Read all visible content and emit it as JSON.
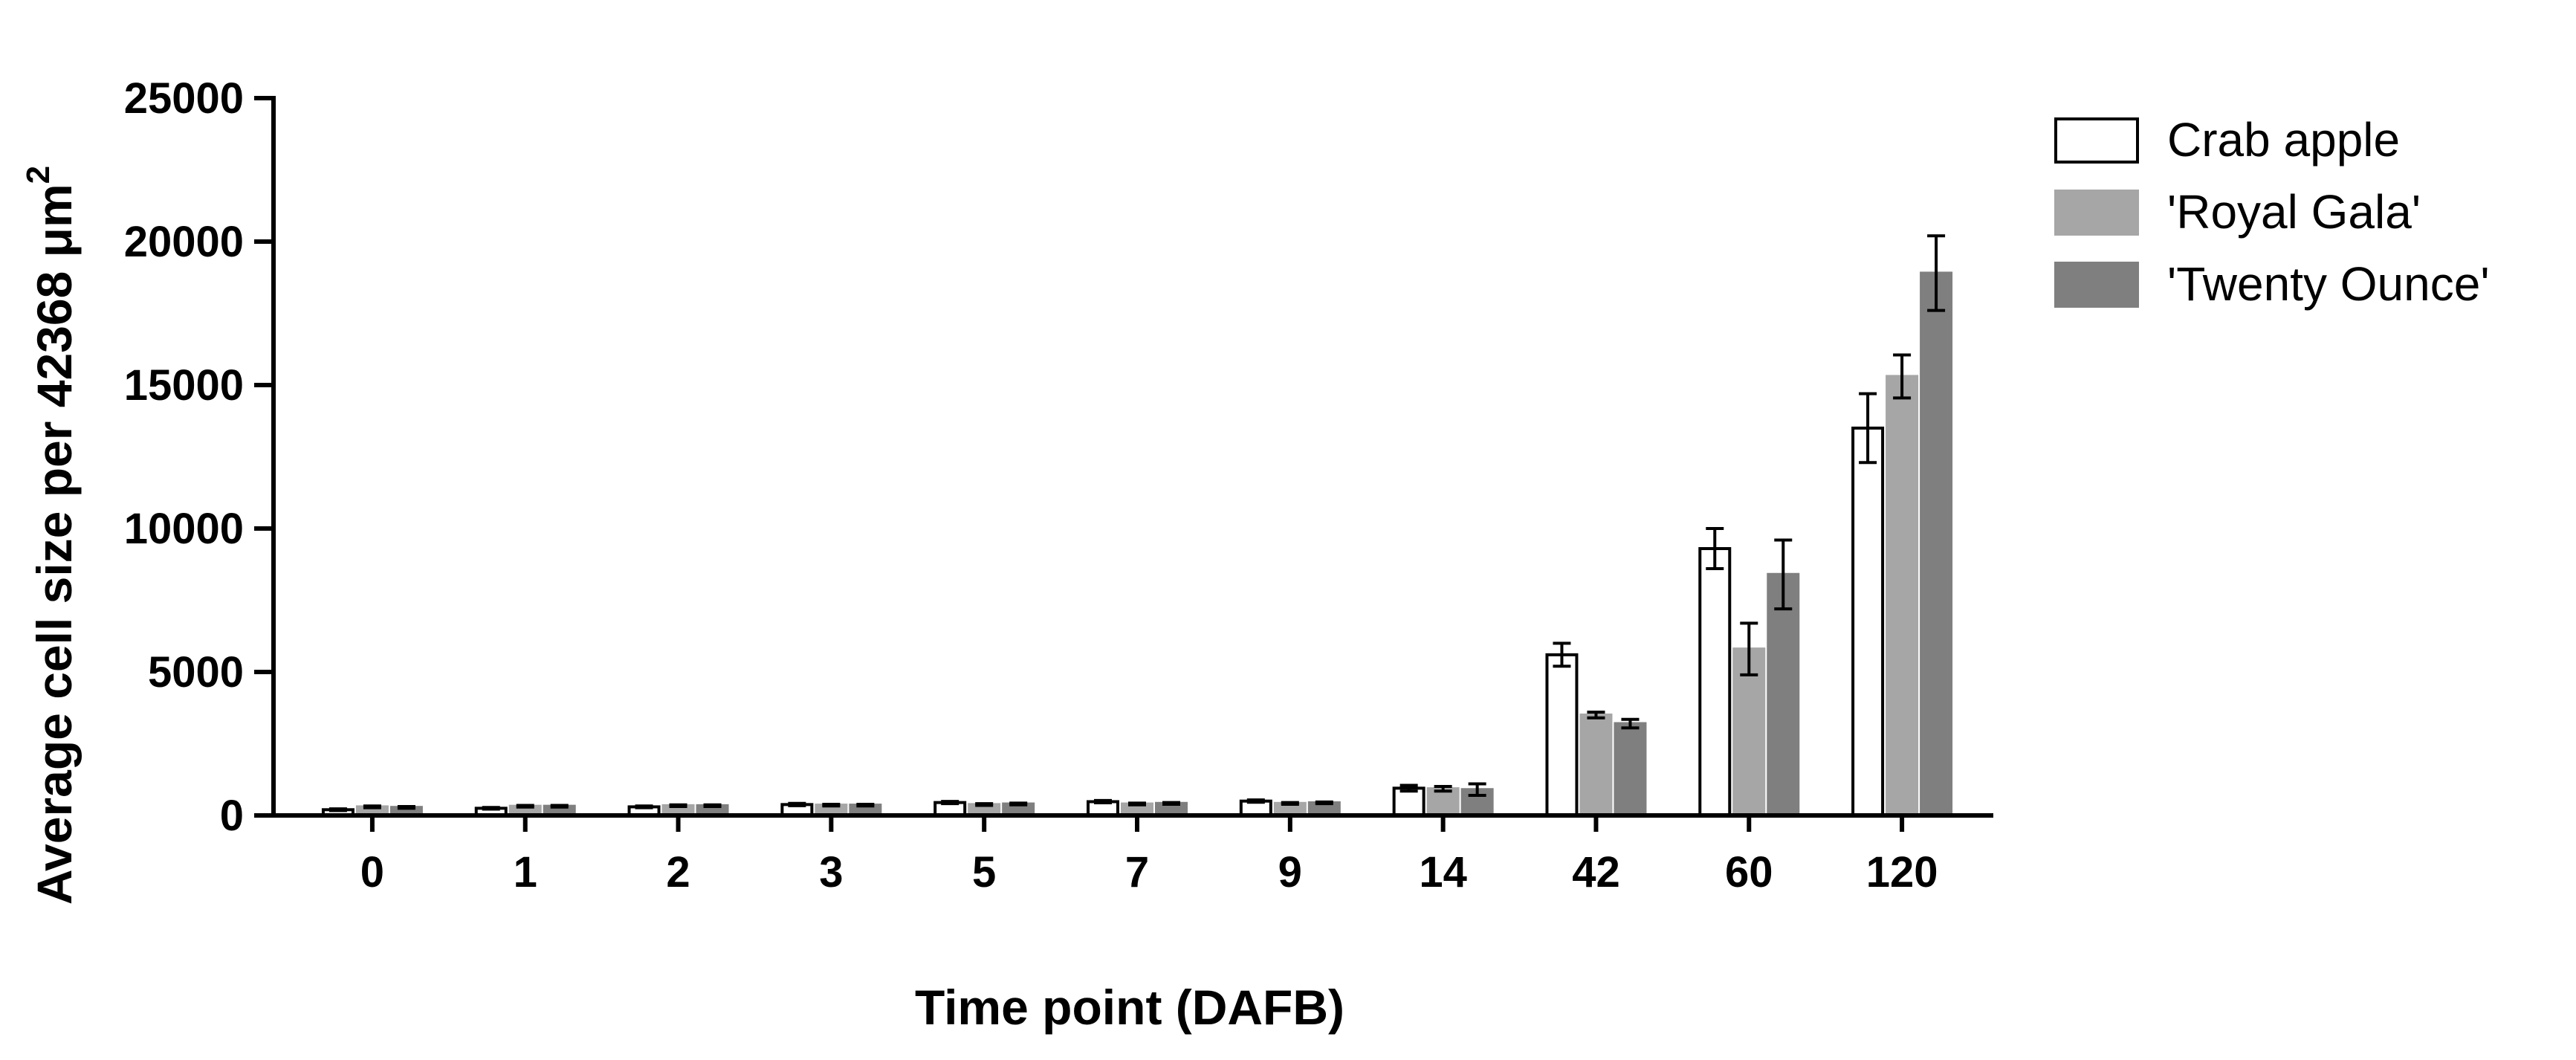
{
  "chart_data": {
    "type": "bar",
    "xlabel": "Time point (DAFB)",
    "ylabel": "Average cell size per 42368 μm",
    "ylabel_superscript": "2",
    "ylim": [
      0,
      25000
    ],
    "yticks": [
      0,
      5000,
      10000,
      15000,
      20000,
      25000
    ],
    "ytick_labels": [
      "0",
      "5000",
      "10000",
      "15000",
      "20000",
      "25000"
    ],
    "categories": [
      "0",
      "1",
      "2",
      "3",
      "5",
      "7",
      "9",
      "14",
      "42",
      "60",
      "120"
    ],
    "grid": false,
    "legend_position": "top-right",
    "series": [
      {
        "name": "Crab apple",
        "color": "#ffffff",
        "stroke": "#000000",
        "values": [
          200,
          250,
          300,
          380,
          450,
          480,
          500,
          950,
          5600,
          9300,
          13500
        ],
        "errors": [
          30,
          30,
          30,
          40,
          40,
          40,
          40,
          100,
          400,
          700,
          1200
        ]
      },
      {
        "name": "'Royal Gala'",
        "color": "#a6a6a6",
        "stroke": "#a6a6a6",
        "values": [
          300,
          320,
          340,
          360,
          380,
          400,
          420,
          930,
          3500,
          5800,
          15300
        ],
        "errors": [
          30,
          30,
          30,
          30,
          30,
          30,
          30,
          80,
          100,
          900,
          750
        ]
      },
      {
        "name": "'Twenty Ounce'",
        "color": "#7f7f7f",
        "stroke": "#7f7f7f",
        "values": [
          280,
          320,
          340,
          360,
          400,
          420,
          440,
          900,
          3200,
          8400,
          18900
        ],
        "errors": [
          30,
          30,
          30,
          30,
          30,
          30,
          30,
          200,
          150,
          1200,
          1300
        ]
      }
    ]
  }
}
